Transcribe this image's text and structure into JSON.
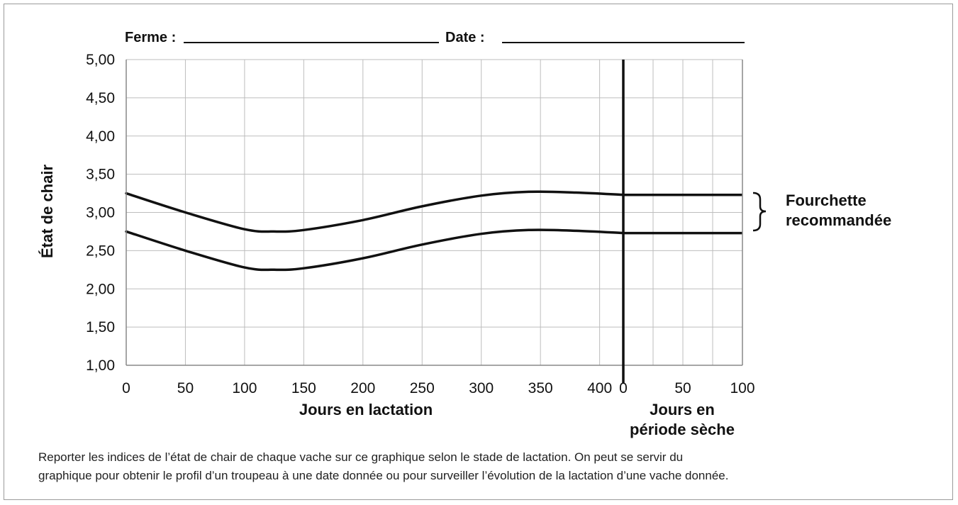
{
  "header": {
    "farm_label": "Ferme :",
    "date_label": "Date :"
  },
  "caption": {
    "line1": "Reporter les indices de l’état de chair de chaque vache sur ce graphique selon le stade de lactation. On peut se servir du",
    "line2": "graphique pour obtenir le profil d’un troupeau à une date donnée ou pour surveiller l’évolution de la lactation d’une vache donnée."
  },
  "chart_data": {
    "type": "line",
    "title": "",
    "ylabel": "État de chair",
    "ylim": [
      1.0,
      5.0
    ],
    "y_ticks": [
      "1,00",
      "1,50",
      "2,00",
      "2,50",
      "3,00",
      "3,50",
      "4,00",
      "4,50",
      "5,00"
    ],
    "grid": true,
    "segments": [
      {
        "label_lines": [
          "Jours en lactation"
        ],
        "x_ticks": [
          "0",
          "50",
          "100",
          "150",
          "200",
          "250",
          "300",
          "350",
          "400"
        ],
        "xlim": [
          0,
          420
        ]
      },
      {
        "label_lines": [
          "Jours en",
          "période sèche"
        ],
        "x_ticks": [
          "0",
          "50",
          "100"
        ],
        "xlim": [
          0,
          100
        ]
      }
    ],
    "series": [
      {
        "role": "upper",
        "lactation": {
          "x": [
            0,
            50,
            100,
            125,
            150,
            200,
            250,
            300,
            340,
            380,
            420
          ],
          "y": [
            3.25,
            3.0,
            2.78,
            2.75,
            2.77,
            2.9,
            3.08,
            3.22,
            3.27,
            3.26,
            3.23
          ]
        },
        "dry": {
          "x": [
            0,
            50,
            100
          ],
          "y": [
            3.23,
            3.23,
            3.23
          ]
        }
      },
      {
        "role": "lower",
        "lactation": {
          "x": [
            0,
            50,
            100,
            125,
            150,
            200,
            250,
            300,
            340,
            380,
            420
          ],
          "y": [
            2.75,
            2.5,
            2.28,
            2.25,
            2.27,
            2.4,
            2.58,
            2.72,
            2.77,
            2.76,
            2.73
          ]
        },
        "dry": {
          "x": [
            0,
            50,
            100
          ],
          "y": [
            2.73,
            2.73,
            2.73
          ]
        }
      }
    ],
    "legend": {
      "label_lines": [
        "Fourchette",
        "recommandée"
      ],
      "placement": "right"
    }
  }
}
